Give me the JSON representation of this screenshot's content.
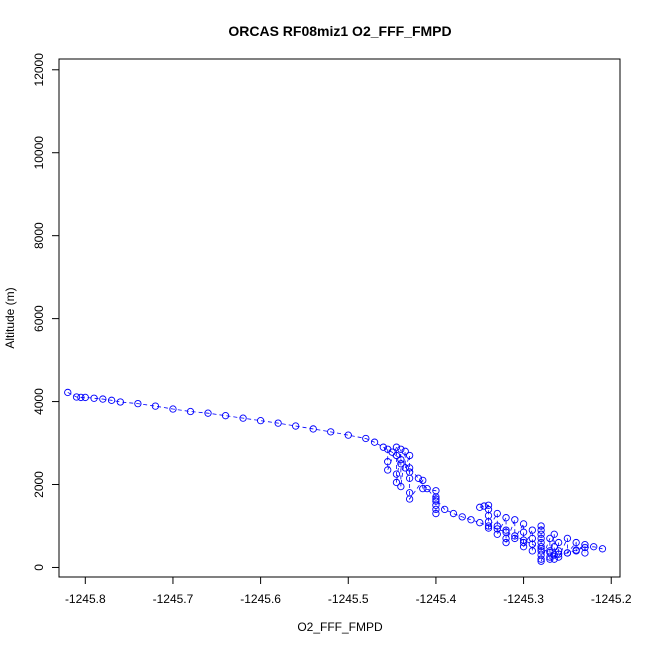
{
  "chart_data": {
    "type": "scatter",
    "title": "ORCAS RF08miz1 O2_FFF_FMPD",
    "xlabel": "O2_FFF_FMPD",
    "ylabel": "Altitude (m)",
    "xlim": [
      -1245.83,
      -1245.19
    ],
    "ylim": [
      -230,
      12260
    ],
    "xticks": [
      -1245.8,
      -1245.7,
      -1245.6,
      -1245.5,
      -1245.4,
      -1245.3,
      -1245.2
    ],
    "xtick_labels": [
      "-1245.8",
      "-1245.7",
      "-1245.6",
      "-1245.5",
      "-1245.4",
      "-1245.3",
      "-1245.2"
    ],
    "yticks": [
      0,
      2000,
      4000,
      6000,
      8000,
      10000,
      12000
    ],
    "ytick_labels": [
      "0",
      "2000",
      "4000",
      "6000",
      "8000",
      "10000",
      "12000"
    ],
    "grid": false,
    "legend": "none",
    "marker": "open-circle",
    "line_style": "dashed",
    "color": "#0000ff",
    "series": [
      {
        "x": [
          -1245.82,
          -1245.81,
          -1245.805,
          -1245.8,
          -1245.79,
          -1245.78,
          -1245.77,
          -1245.76,
          -1245.74,
          -1245.72,
          -1245.7,
          -1245.68,
          -1245.66,
          -1245.64,
          -1245.62,
          -1245.6,
          -1245.58,
          -1245.56,
          -1245.54,
          -1245.52,
          -1245.5,
          -1245.48,
          -1245.47,
          -1245.46,
          -1245.45,
          -1245.44,
          -1245.43,
          -1245.42,
          -1245.41,
          -1245.4,
          -1245.39,
          -1245.38,
          -1245.37,
          -1245.36,
          -1245.35,
          -1245.34,
          -1245.33,
          -1245.32,
          -1245.31,
          -1245.3,
          -1245.29,
          -1245.28,
          -1245.27,
          -1245.26,
          -1245.25,
          -1245.24,
          -1245.23,
          -1245.22,
          -1245.21
        ],
        "y": [
          4220,
          4110,
          4100,
          4100,
          4080,
          4060,
          4030,
          3990,
          3950,
          3890,
          3820,
          3760,
          3720,
          3660,
          3600,
          3540,
          3480,
          3410,
          3340,
          3270,
          3190,
          3110,
          3020,
          2900,
          2780,
          2600,
          2400,
          2150,
          1900,
          1650,
          1400,
          1300,
          1220,
          1150,
          1080,
          1000,
          930,
          850,
          760,
          660,
          560,
          450,
          360,
          320,
          350,
          420,
          480,
          500,
          450
        ]
      },
      {
        "x": [
          -1245.455,
          -1245.455,
          -1245.455,
          -1245.445,
          -1245.445,
          -1245.445,
          -1245.445,
          -1245.44,
          -1245.44,
          -1245.44,
          -1245.435,
          -1245.435,
          -1245.43,
          -1245.43,
          -1245.43,
          -1245.43,
          -1245.43,
          -1245.415,
          -1245.415,
          -1245.4,
          -1245.4,
          -1245.4,
          -1245.4,
          -1245.4,
          -1245.4
        ],
        "y": [
          2850,
          2550,
          2350,
          2900,
          2700,
          2250,
          2050,
          2850,
          2500,
          1950,
          2800,
          2400,
          2700,
          2300,
          2150,
          1800,
          1650,
          2100,
          1900,
          1850,
          1700,
          1600,
          1500,
          1400,
          1300
        ]
      },
      {
        "x": [
          -1245.35,
          -1245.345,
          -1245.34,
          -1245.34,
          -1245.34,
          -1245.34,
          -1245.34,
          -1245.33,
          -1245.33,
          -1245.33,
          -1245.32,
          -1245.32,
          -1245.32,
          -1245.32,
          -1245.31,
          -1245.31,
          -1245.3,
          -1245.3,
          -1245.3,
          -1245.3,
          -1245.29,
          -1245.29,
          -1245.29
        ],
        "y": [
          1450,
          1480,
          1500,
          1400,
          1250,
          1100,
          950,
          1300,
          1000,
          800,
          1200,
          900,
          700,
          600,
          1150,
          700,
          1050,
          850,
          600,
          500,
          900,
          700,
          400
        ]
      },
      {
        "x": [
          -1245.28,
          -1245.28,
          -1245.28,
          -1245.28,
          -1245.28,
          -1245.28,
          -1245.28,
          -1245.28,
          -1245.28,
          -1245.28,
          -1245.27,
          -1245.27,
          -1245.27,
          -1245.27,
          -1245.265,
          -1245.265,
          -1245.265,
          -1245.265,
          -1245.26,
          -1245.26,
          -1245.26,
          -1245.25,
          -1245.25,
          -1245.24,
          -1245.24,
          -1245.23,
          -1245.23
        ],
        "y": [
          1000,
          900,
          800,
          700,
          600,
          500,
          400,
          300,
          200,
          150,
          700,
          400,
          250,
          200,
          800,
          500,
          300,
          200,
          600,
          400,
          250,
          700,
          350,
          600,
          400,
          550,
          350
        ]
      }
    ]
  }
}
